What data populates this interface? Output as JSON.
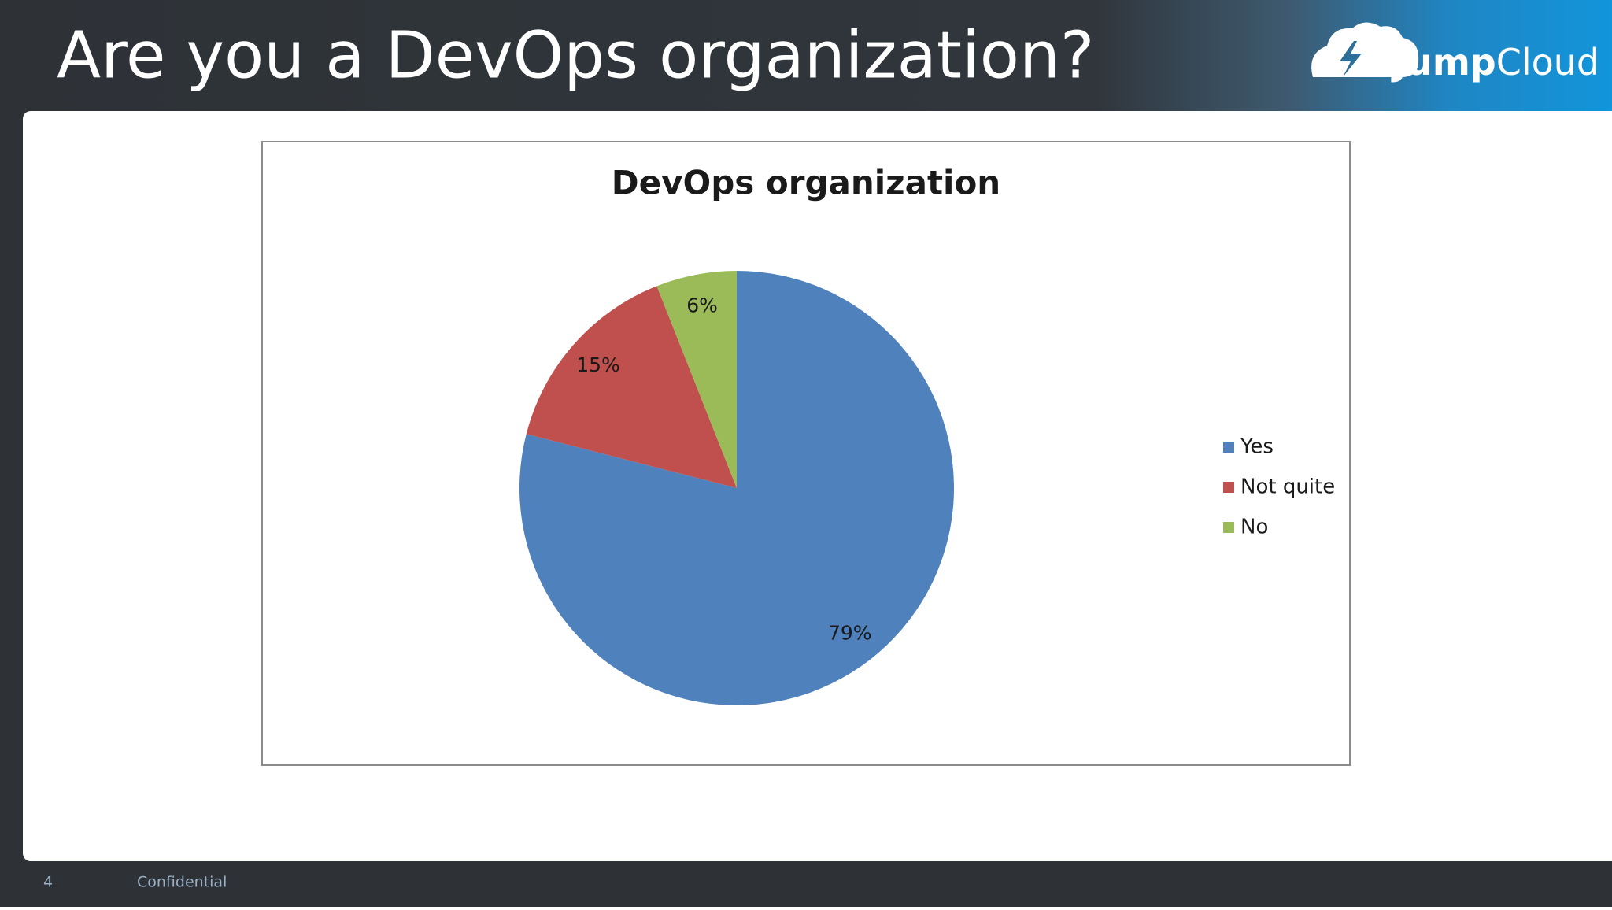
{
  "slide": {
    "title": "Are you a DevOps organization?",
    "logo_parts": [
      "Jump",
      "Cloud"
    ],
    "page_number": "4",
    "footer": "Confidential"
  },
  "chart_data": {
    "type": "pie",
    "title": "DevOps organization",
    "categories": [
      "Yes",
      "Not quite",
      "No"
    ],
    "values": [
      79,
      15,
      6
    ],
    "value_labels": [
      "79%",
      "15%",
      "6%"
    ],
    "colors": [
      "#4f81bd",
      "#c0504d",
      "#9bbb59"
    ],
    "legend": "right"
  }
}
